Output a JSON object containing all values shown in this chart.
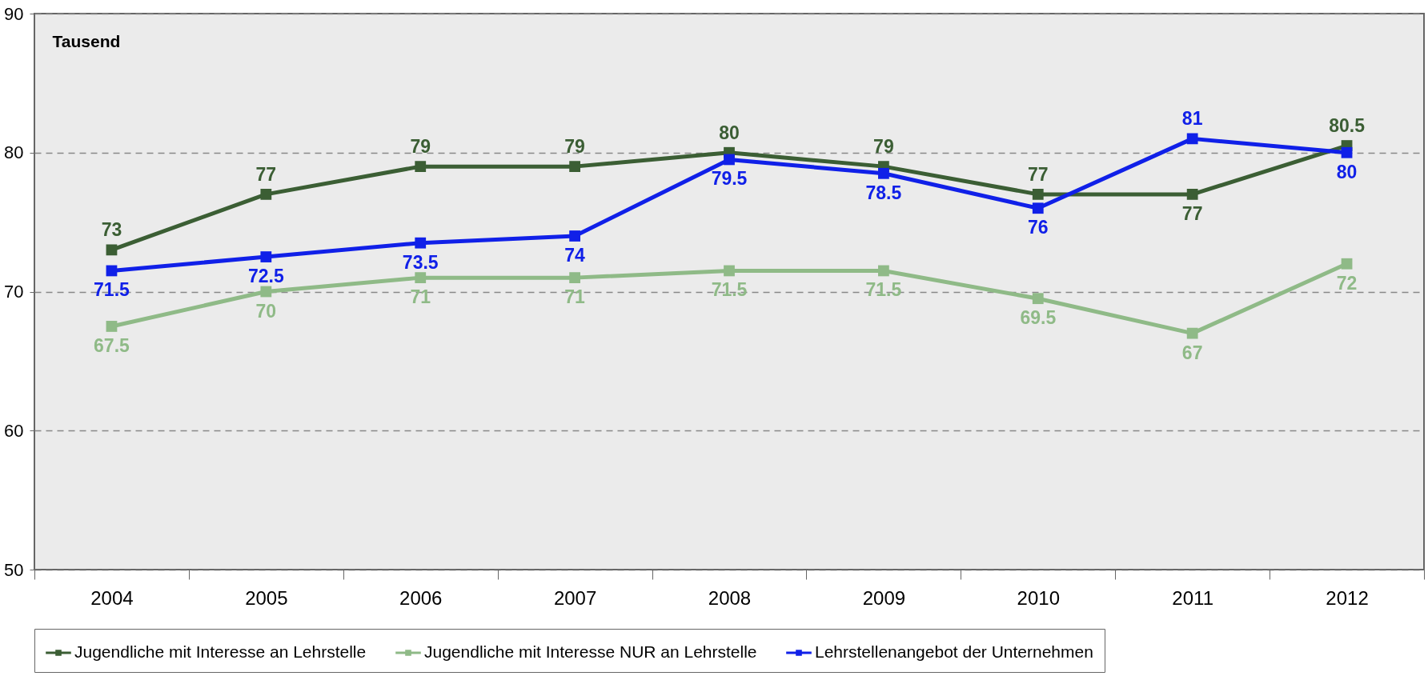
{
  "chart_data": {
    "type": "line",
    "ylabel": "Tausend",
    "categories": [
      "2004",
      "2005",
      "2006",
      "2007",
      "2008",
      "2009",
      "2010",
      "2011",
      "2012"
    ],
    "series": [
      {
        "name": "Jugendliche mit Interesse an Lehrstelle",
        "color": "#3b5e34",
        "values": [
          73,
          77,
          79,
          79,
          80,
          79,
          77,
          77,
          80.5
        ]
      },
      {
        "name": "Jugendliche mit Interesse NUR an Lehrstelle",
        "color": "#8fba87",
        "values": [
          67.5,
          70,
          71,
          71,
          71.5,
          71.5,
          69.5,
          67,
          72
        ]
      },
      {
        "name": "Lehrstellenangebot der Unternehmen",
        "color": "#1020e8",
        "values": [
          71.5,
          72.5,
          73.5,
          74,
          79.5,
          78.5,
          76,
          81,
          80
        ]
      }
    ],
    "ylim": [
      50,
      90
    ],
    "yticks": [
      50,
      60,
      70,
      80,
      90
    ],
    "grid": "y",
    "legend": "bottom",
    "marker": "square",
    "line_style": "solid",
    "data_labels": true
  }
}
